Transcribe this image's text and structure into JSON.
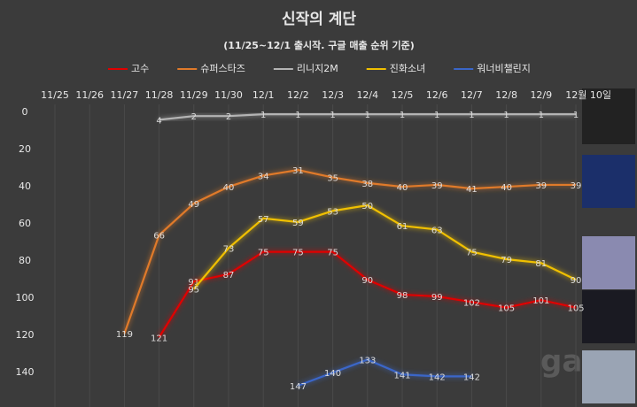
{
  "chart_data": {
    "type": "line",
    "title": "신작의 계단",
    "subtitle": "(11/25~12/1 출시작. 구글 매출 순위 기준)",
    "categories": [
      "11/25",
      "11/26",
      "11/27",
      "11/28",
      "11/29",
      "11/30",
      "12/1",
      "12/2",
      "12/3",
      "12/4",
      "12/5",
      "12/6",
      "12/7",
      "12/8",
      "12/9",
      "12월 10일"
    ],
    "ylim": [
      158,
      0
    ],
    "yticks": [
      0,
      20,
      40,
      60,
      80,
      100,
      120,
      140
    ],
    "grid": true,
    "legend": "top",
    "series": [
      {
        "name": "고수",
        "color": "#e00000",
        "values": [
          null,
          null,
          null,
          121,
          91,
          87,
          75,
          75,
          75,
          90,
          98,
          99,
          102,
          105,
          101,
          105
        ]
      },
      {
        "name": "슈퍼스타즈",
        "color": "#e07a2a",
        "values": [
          null,
          null,
          119,
          66,
          49,
          40,
          34,
          31,
          35,
          38,
          40,
          39,
          41,
          40,
          39,
          39
        ]
      },
      {
        "name": "리니지2M",
        "color": "#b4b4b4",
        "values": [
          null,
          null,
          null,
          4,
          2,
          2,
          1,
          1,
          1,
          1,
          1,
          1,
          1,
          1,
          1,
          1
        ]
      },
      {
        "name": "진화소녀",
        "color": "#f0c000",
        "values": [
          null,
          null,
          null,
          null,
          95,
          73,
          57,
          59,
          53,
          50,
          61,
          63,
          75,
          79,
          81,
          90
        ]
      },
      {
        "name": "워너비챌린지",
        "color": "#3a66c8",
        "values": [
          null,
          null,
          null,
          null,
          null,
          null,
          null,
          147,
          140,
          133,
          141,
          142,
          142,
          null,
          null,
          null
        ]
      }
    ]
  }
}
